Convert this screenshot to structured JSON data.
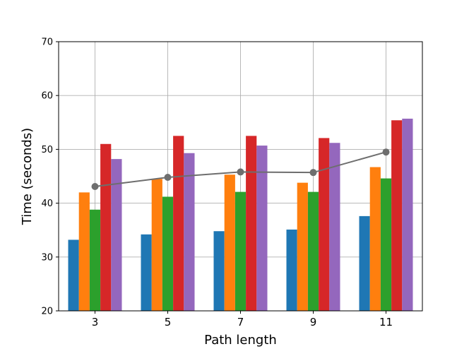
{
  "chart_data": {
    "type": "bar",
    "xlabel": "Path length",
    "ylabel": "Time (seconds)",
    "categories": [
      "3",
      "5",
      "7",
      "9",
      "11"
    ],
    "ylim": [
      20,
      70
    ],
    "yticks": [
      20,
      30,
      40,
      50,
      60,
      70
    ],
    "grid": true,
    "series": [
      {
        "color": "#1f77b4",
        "values": [
          33.2,
          34.2,
          34.8,
          35.1,
          37.6
        ]
      },
      {
        "color": "#ff7f0e",
        "values": [
          42.0,
          44.5,
          45.3,
          43.8,
          46.7
        ]
      },
      {
        "color": "#2ca02c",
        "values": [
          38.8,
          41.2,
          42.1,
          42.1,
          44.6
        ]
      },
      {
        "color": "#d62728",
        "values": [
          51.0,
          52.5,
          52.5,
          52.1,
          55.4
        ]
      },
      {
        "color": "#9467bd",
        "values": [
          48.2,
          49.3,
          50.7,
          51.2,
          55.7
        ]
      }
    ],
    "line": {
      "type": "line",
      "color": "#6e6e6e",
      "values": [
        43.1,
        44.8,
        45.8,
        45.7,
        49.5
      ]
    }
  }
}
